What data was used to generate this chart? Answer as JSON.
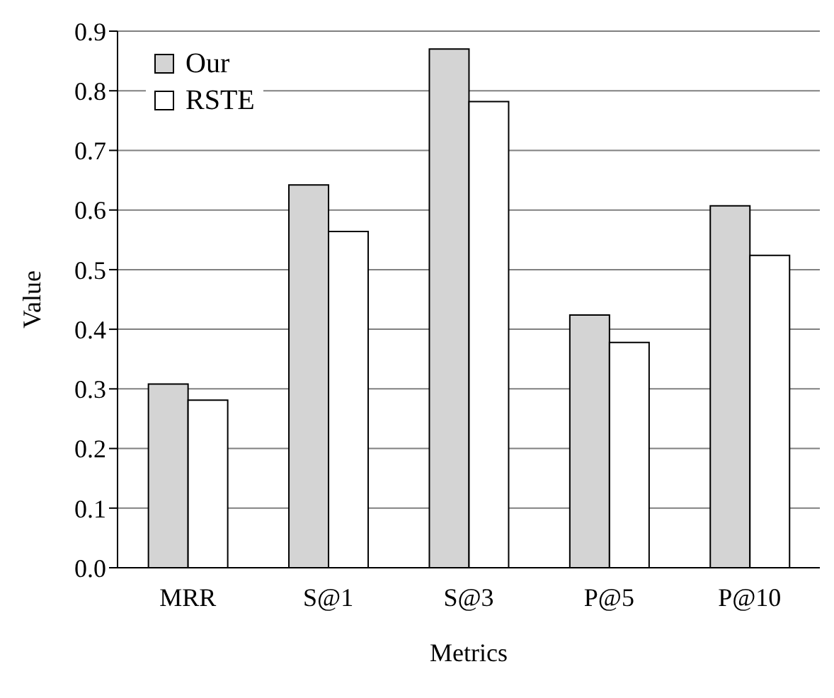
{
  "chart_data": {
    "type": "bar",
    "xlabel": "Metrics",
    "ylabel": "Value",
    "categories": [
      "MRR",
      "S@1",
      "S@3",
      "P@5",
      "P@10"
    ],
    "series": [
      {
        "name": "Our",
        "color": "#d4d4d4",
        "values": [
          0.308,
          0.642,
          0.87,
          0.424,
          0.607
        ]
      },
      {
        "name": "RSTE",
        "color": "#ffffff",
        "values": [
          0.281,
          0.564,
          0.782,
          0.378,
          0.524
        ]
      }
    ],
    "ylim": [
      0,
      0.9
    ],
    "yticks": [
      {
        "value": 0,
        "label": "0.0"
      },
      0.1,
      0.2,
      0.3,
      0.4,
      0.5,
      0.6,
      0.7,
      0.8,
      0.9
    ],
    "grid": "y",
    "legend": "top left"
  }
}
